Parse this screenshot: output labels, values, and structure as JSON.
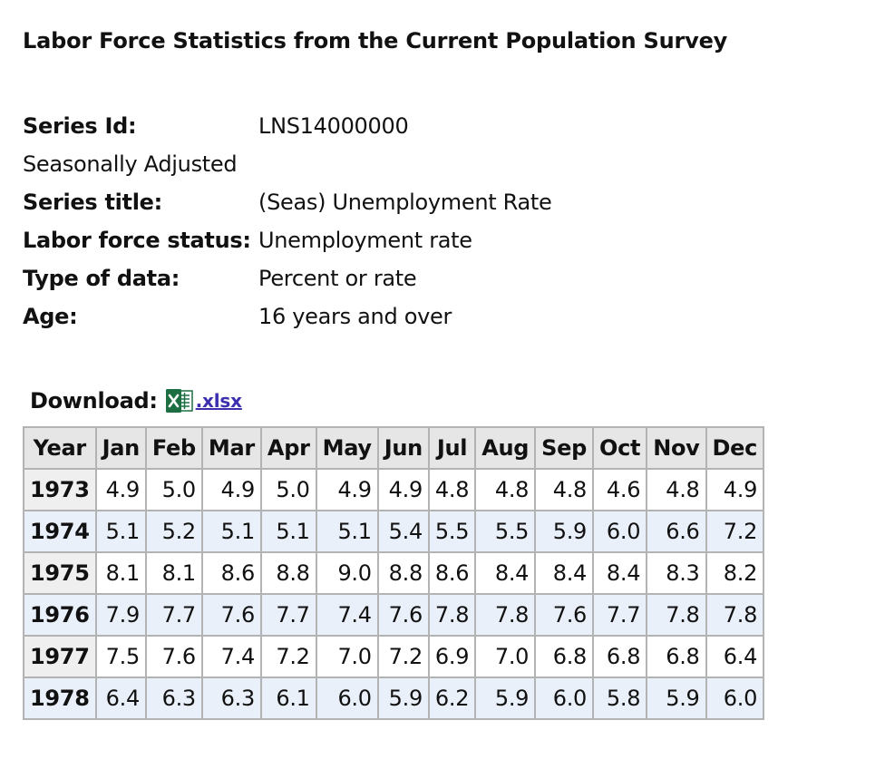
{
  "title": "Labor Force Statistics from the Current Population Survey",
  "series_info": {
    "series_id_label": "Series Id:",
    "series_id": "LNS14000000",
    "adjustment": "Seasonally Adjusted",
    "series_title_label": "Series title:",
    "series_title": "(Seas) Unemployment Rate",
    "labor_force_status_label": "Labor force status:",
    "labor_force_status": "Unemployment rate",
    "type_of_data_label": "Type of data:",
    "type_of_data": "Percent or rate",
    "age_label": "Age:",
    "age": "16 years and over"
  },
  "download": {
    "label": "Download:",
    "icon": "excel-icon",
    "link_text": ".xlsx"
  },
  "table": {
    "headers": [
      "Year",
      "Jan",
      "Feb",
      "Mar",
      "Apr",
      "May",
      "Jun",
      "Jul",
      "Aug",
      "Sep",
      "Oct",
      "Nov",
      "Dec"
    ],
    "rows": [
      {
        "year": "1973",
        "values": [
          "4.9",
          "5.0",
          "4.9",
          "5.0",
          "4.9",
          "4.9",
          "4.8",
          "4.8",
          "4.8",
          "4.6",
          "4.8",
          "4.9"
        ]
      },
      {
        "year": "1974",
        "values": [
          "5.1",
          "5.2",
          "5.1",
          "5.1",
          "5.1",
          "5.4",
          "5.5",
          "5.5",
          "5.9",
          "6.0",
          "6.6",
          "7.2"
        ]
      },
      {
        "year": "1975",
        "values": [
          "8.1",
          "8.1",
          "8.6",
          "8.8",
          "9.0",
          "8.8",
          "8.6",
          "8.4",
          "8.4",
          "8.4",
          "8.3",
          "8.2"
        ]
      },
      {
        "year": "1976",
        "values": [
          "7.9",
          "7.7",
          "7.6",
          "7.7",
          "7.4",
          "7.6",
          "7.8",
          "7.8",
          "7.6",
          "7.7",
          "7.8",
          "7.8"
        ]
      },
      {
        "year": "1977",
        "values": [
          "7.5",
          "7.6",
          "7.4",
          "7.2",
          "7.0",
          "7.2",
          "6.9",
          "7.0",
          "6.8",
          "6.8",
          "6.8",
          "6.4"
        ]
      },
      {
        "year": "1978",
        "values": [
          "6.4",
          "6.3",
          "6.3",
          "6.1",
          "6.0",
          "5.9",
          "6.2",
          "5.9",
          "6.0",
          "5.8",
          "5.9",
          "6.0"
        ]
      }
    ]
  },
  "colors": {
    "header_bg": "#e6e6e6",
    "row_alt_bg": "#eaf0fa",
    "border": "#b3b3b3",
    "link": "#3b2fb0",
    "excel_green": "#1d6f42"
  }
}
